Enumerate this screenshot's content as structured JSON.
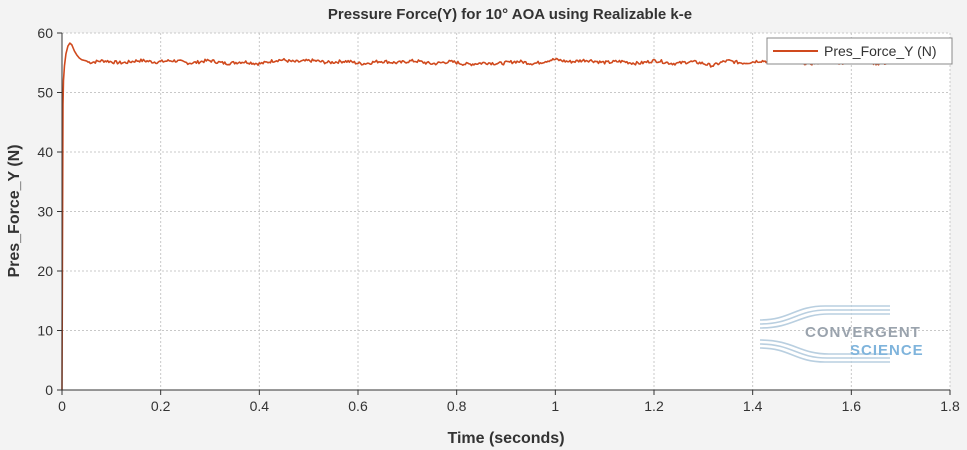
{
  "chart_data": {
    "type": "line",
    "title": "Pressure Force(Y) for 10°  AOA using Realizable k-e",
    "xlabel": "Time (seconds)",
    "ylabel": "Pres_Force_Y (N)",
    "xlim": [
      0,
      1.8
    ],
    "ylim": [
      0,
      60
    ],
    "x_ticks": [
      "0",
      "0.2",
      "0.4",
      "0.6",
      "0.8",
      "1",
      "1.2",
      "1.4",
      "1.6",
      "1.8"
    ],
    "y_ticks": [
      "0",
      "10",
      "20",
      "30",
      "40",
      "50",
      "60"
    ],
    "grid": true,
    "legend_position": "top-right",
    "series": [
      {
        "name": "Pres_Force_Y (N)",
        "color": "#d04a1e",
        "x": [
          0,
          0.001,
          0.002,
          0.003,
          0.005,
          0.008,
          0.012,
          0.016,
          0.02,
          0.025,
          0.03,
          0.035,
          0.04,
          0.05,
          0.06,
          0.08,
          0.1,
          0.15,
          0.2,
          0.25,
          0.3,
          0.35,
          0.4,
          0.45,
          0.5,
          0.55,
          0.6,
          0.65,
          0.7,
          0.75,
          0.8,
          0.85,
          0.9,
          0.95,
          1.0,
          1.05,
          1.1,
          1.15,
          1.2,
          1.25,
          1.3,
          1.32,
          1.35,
          1.4,
          1.45,
          1.5,
          1.55,
          1.6,
          1.65,
          1.7
        ],
        "y": [
          0,
          25,
          48,
          52,
          54.5,
          56.5,
          57.8,
          58.3,
          58.0,
          57.0,
          56.3,
          55.8,
          55.5,
          55.3,
          55.2,
          55.2,
          55.1,
          55.2,
          55.3,
          55.1,
          55.2,
          55.0,
          55.0,
          55.4,
          55.2,
          55.2,
          55.0,
          55.1,
          55.2,
          55.0,
          55.0,
          54.8,
          55.1,
          55.0,
          55.4,
          55.3,
          55.2,
          55.0,
          55.2,
          55.0,
          55.0,
          54.6,
          55.2,
          55.1,
          55.3,
          55.0,
          55.1,
          55.1,
          55.0,
          55.1
        ]
      }
    ]
  },
  "watermark": {
    "line1": "CONVERGENT",
    "line2": "SCIENCE"
  }
}
